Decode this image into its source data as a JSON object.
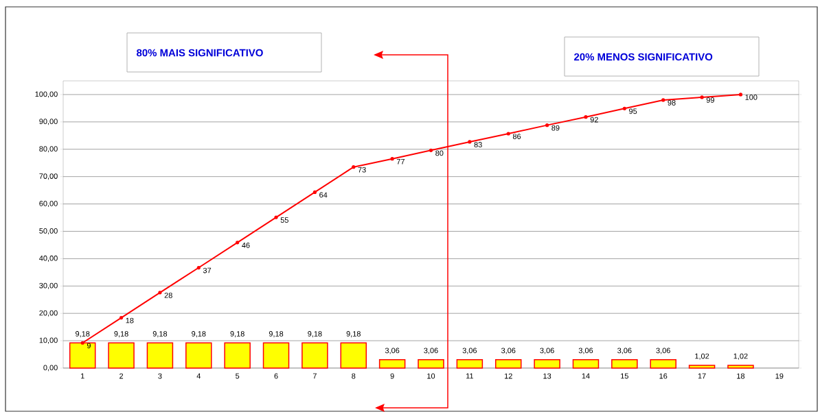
{
  "chart_data": {
    "type": "bar",
    "categories": [
      "1",
      "2",
      "3",
      "4",
      "5",
      "6",
      "7",
      "8",
      "9",
      "10",
      "11",
      "12",
      "13",
      "14",
      "15",
      "16",
      "17",
      "18",
      "19"
    ],
    "series": [
      {
        "color": "#ffff00",
        "values": [
          9.18,
          9.18,
          9.18,
          9.18,
          9.18,
          9.18,
          9.18,
          9.18,
          3.06,
          3.06,
          3.06,
          3.06,
          3.06,
          3.06,
          3.06,
          3.06,
          1.02,
          1.02,
          null
        ],
        "value_labels": [
          "9,18",
          "9,18",
          "9,18",
          "9,18",
          "9,18",
          "9,18",
          "9,18",
          "9,18",
          "3,06",
          "3,06",
          "3,06",
          "3,06",
          "3,06",
          "3,06",
          "3,06",
          "3,06",
          "1,02",
          "1,02",
          null
        ]
      },
      {
        "type": "line",
        "color": "#ff0000",
        "marker": "circle",
        "values": [
          9.2,
          18.4,
          27.6,
          36.7,
          45.9,
          55.1,
          64.3,
          73.5,
          76.5,
          79.6,
          82.7,
          85.7,
          88.8,
          91.8,
          94.9,
          98.0,
          99.0,
          100,
          null
        ],
        "value_labels": [
          "9",
          "18",
          "28",
          "37",
          "46",
          "55",
          "64",
          "73",
          "77",
          "80",
          "83",
          "86",
          "89",
          "92",
          "95",
          "98",
          "99",
          "100",
          null
        ]
      }
    ],
    "ylim": [
      0,
      105
    ],
    "yticks": [
      {
        "value": 0,
        "label": "0,00"
      },
      {
        "value": 10,
        "label": "10,00"
      },
      {
        "value": 20,
        "label": "20,00"
      },
      {
        "value": 30,
        "label": "30,00"
      },
      {
        "value": 40,
        "label": "40,00"
      },
      {
        "value": 50,
        "label": "50,00"
      },
      {
        "value": 60,
        "label": "60,00"
      },
      {
        "value": 70,
        "label": "70,00"
      },
      {
        "value": 80,
        "label": "80,00"
      },
      {
        "value": 90,
        "label": "90,00"
      },
      {
        "value": 100,
        "label": "100,00"
      }
    ],
    "grid": "y",
    "annotations": [
      "80% MAIS SIGNIFICATIVO",
      "20% MENOS SIGNIFICATIVO"
    ]
  }
}
